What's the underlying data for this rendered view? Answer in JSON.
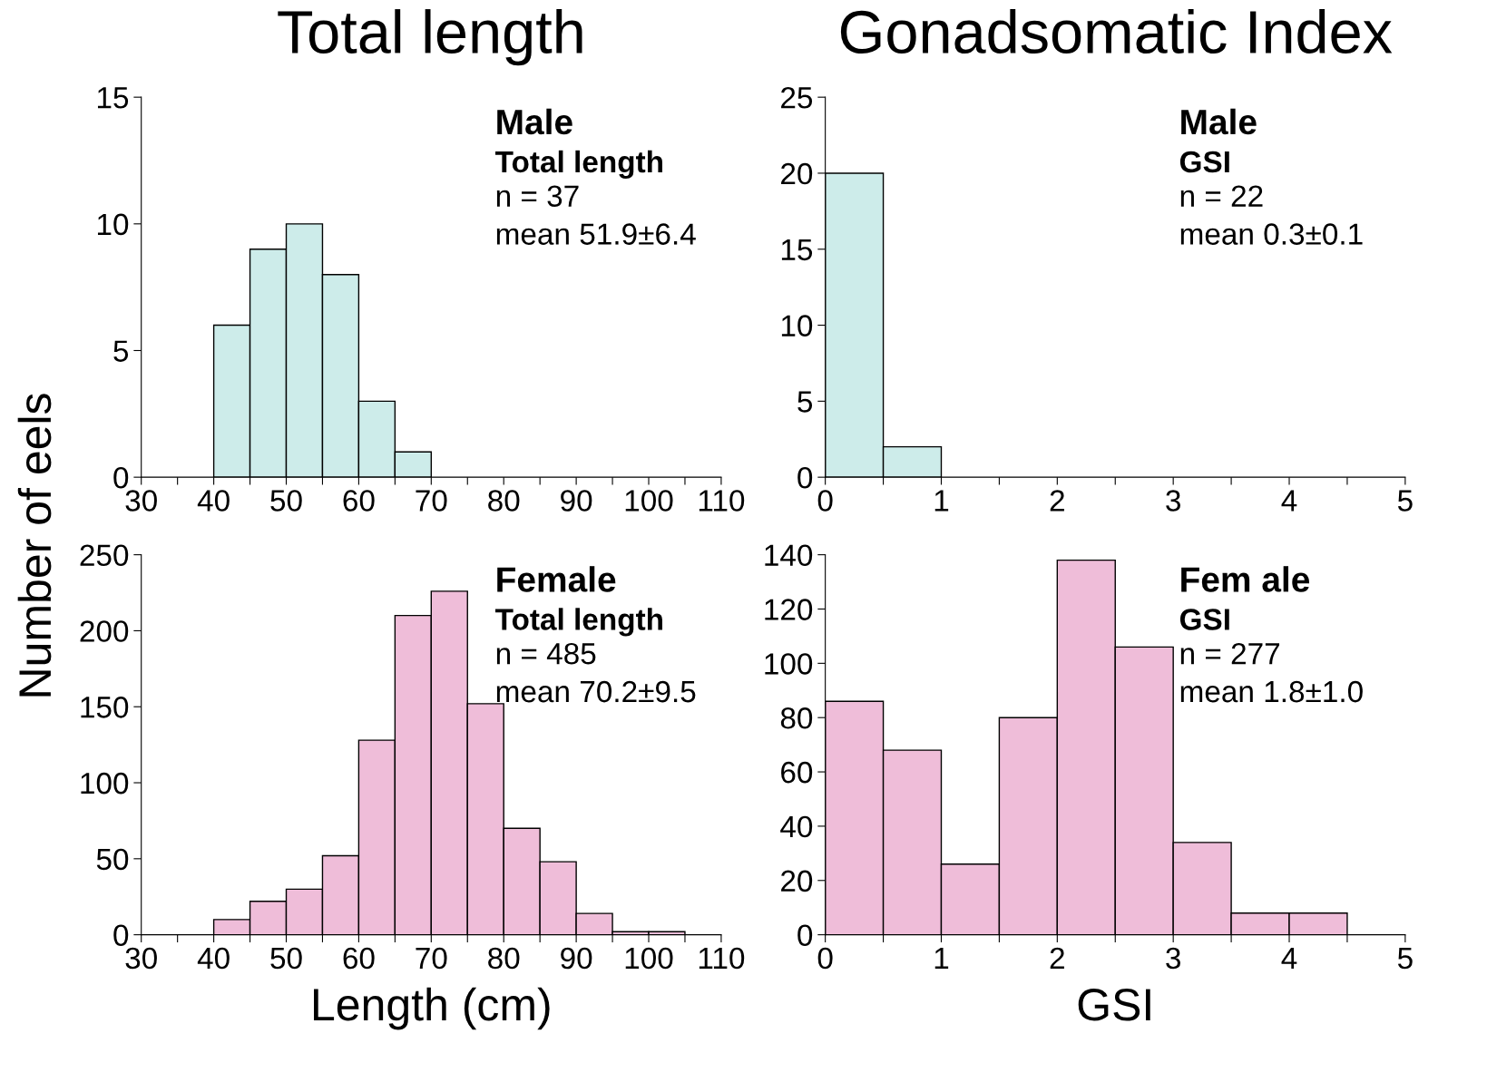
{
  "chart_data": [
    {
      "type": "histogram",
      "title": "Total length",
      "ylabel": "Number of eels",
      "bins": [
        40,
        45,
        50,
        55,
        60,
        65,
        70
      ],
      "values": [
        6,
        9,
        10,
        8,
        3,
        1
      ],
      "color": "#cdecea",
      "xlim": [
        30,
        110
      ],
      "xticks": [
        30,
        {
          "value": 35,
          "label": null
        },
        40,
        {
          "value": 45,
          "label": null
        },
        50,
        {
          "value": 55,
          "label": null
        },
        60,
        {
          "value": 65,
          "label": null
        },
        70,
        {
          "value": 75,
          "label": null
        },
        80,
        {
          "value": 85,
          "label": null
        },
        90,
        {
          "value": 95,
          "label": null
        },
        100,
        {
          "value": 105,
          "label": null
        },
        110
      ],
      "ylim": [
        0,
        15
      ],
      "yticks": [
        0,
        5,
        10,
        15
      ],
      "grid": false,
      "annotations": [
        "Male",
        "Total length",
        "n = 37",
        "mean 51.9±6.4"
      ]
    },
    {
      "type": "histogram",
      "title": "Gonadsomatic Index",
      "bins": [
        0,
        0.5,
        1
      ],
      "values": [
        20,
        2
      ],
      "color": "#cdecea",
      "xlim": [
        0,
        5
      ],
      "xticks": [
        0,
        {
          "value": 0.5,
          "label": null
        },
        1,
        {
          "value": 1.5,
          "label": null
        },
        2,
        {
          "value": 2.5,
          "label": null
        },
        3,
        {
          "value": 3.5,
          "label": null
        },
        4,
        {
          "value": 4.5,
          "label": null
        },
        5
      ],
      "ylim": [
        0,
        25
      ],
      "yticks": [
        0,
        5,
        10,
        15,
        20,
        25
      ],
      "grid": false,
      "annotations": [
        "Male",
        "GSI",
        "n = 22",
        "mean 0.3±0.1"
      ]
    },
    {
      "type": "histogram",
      "xlabel": "Length (cm)",
      "bins": [
        40,
        45,
        50,
        55,
        60,
        65,
        70,
        75,
        80,
        85,
        90,
        95,
        100,
        105
      ],
      "values": [
        10,
        22,
        30,
        52,
        128,
        210,
        226,
        152,
        70,
        48,
        14,
        2,
        2
      ],
      "color": "#efbdd9",
      "xlim": [
        30,
        110
      ],
      "xticks": [
        30,
        {
          "value": 35,
          "label": null
        },
        40,
        {
          "value": 45,
          "label": null
        },
        50,
        {
          "value": 55,
          "label": null
        },
        60,
        {
          "value": 65,
          "label": null
        },
        70,
        {
          "value": 75,
          "label": null
        },
        80,
        {
          "value": 85,
          "label": null
        },
        90,
        {
          "value": 95,
          "label": null
        },
        100,
        {
          "value": 105,
          "label": null
        },
        110
      ],
      "ylim": [
        0,
        250
      ],
      "yticks": [
        0,
        50,
        100,
        150,
        200,
        250
      ],
      "grid": false,
      "annotations": [
        "Female",
        "Total length",
        "n = 485",
        "mean 70.2±9.5"
      ]
    },
    {
      "type": "histogram",
      "xlabel": "GSI",
      "bins": [
        0,
        0.5,
        1,
        1.5,
        2,
        2.5,
        3,
        3.5,
        4,
        4.5
      ],
      "values": [
        86,
        68,
        26,
        80,
        138,
        106,
        34,
        8,
        8
      ],
      "color": "#efbdd9",
      "xlim": [
        0,
        5
      ],
      "xticks": [
        0,
        {
          "value": 0.5,
          "label": null
        },
        1,
        {
          "value": 1.5,
          "label": null
        },
        2,
        {
          "value": 2.5,
          "label": null
        },
        3,
        {
          "value": 3.5,
          "label": null
        },
        4,
        {
          "value": 4.5,
          "label": null
        },
        5
      ],
      "ylim": [
        0,
        140
      ],
      "yticks": [
        0,
        20,
        40,
        60,
        80,
        100,
        120,
        140
      ],
      "grid": false,
      "annotations": [
        "Fem ale",
        "GSI",
        "n = 277",
        "mean 1.8±1.0"
      ]
    }
  ]
}
